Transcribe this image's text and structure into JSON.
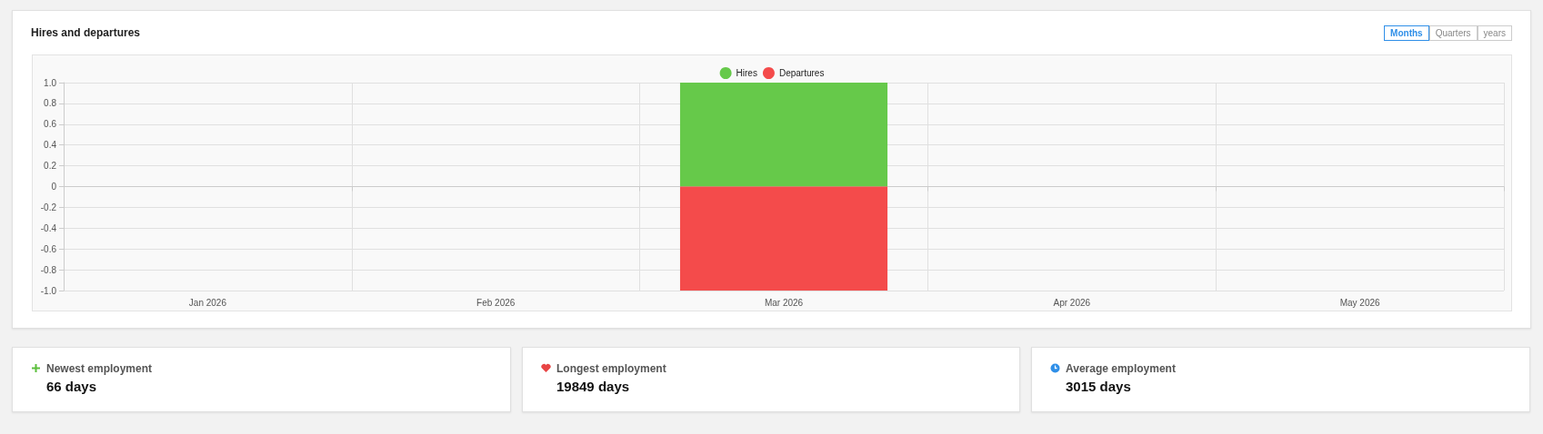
{
  "chart_data": [
    {
      "type": "bar",
      "title": "Hires and departures",
      "annotations": [
        "Months",
        "Quarters",
        "years"
      ],
      "categories": [
        "Jan 2026",
        "Feb 2026",
        "Mar 2026",
        "Apr 2026",
        "May 2026"
      ],
      "series": [
        {
          "name": "Hires",
          "color": "#66c94a",
          "values": [
            0,
            0,
            1,
            0,
            0
          ]
        },
        {
          "name": "Departures",
          "color": "#f44b4b",
          "values": [
            0,
            0,
            -1,
            0,
            0
          ]
        }
      ],
      "stacked": true,
      "ylim": [
        -1,
        1
      ],
      "yticks": [
        {
          "value": -1,
          "label": "-1.0"
        },
        -0.8,
        -0.6,
        -0.4,
        -0.2,
        0,
        0.2,
        0.4,
        0.6,
        0.8,
        {
          "value": 1,
          "label": "1.0"
        }
      ],
      "grid": true,
      "legend": "top"
    },
    {
      "type": "other",
      "title": "Newest employment",
      "annotations": [
        "66 days"
      ]
    },
    {
      "type": "other",
      "title": "Longest employment",
      "annotations": [
        "19849 days"
      ]
    },
    {
      "type": "other",
      "title": "Average employment",
      "annotations": [
        "3015 days"
      ]
    }
  ]
}
